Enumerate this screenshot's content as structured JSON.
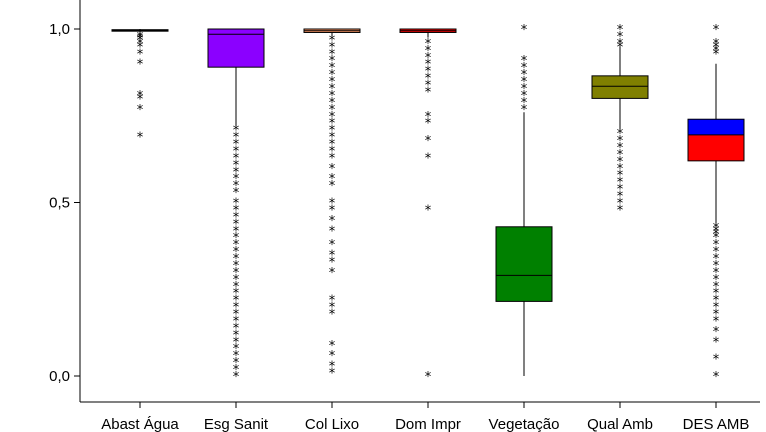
{
  "chart_data": {
    "type": "boxplot",
    "title": "",
    "xlabel": "",
    "ylabel": "",
    "ylim": [
      0,
      1
    ],
    "yticks": [
      {
        "value": 0,
        "label": "0,0"
      },
      {
        "value": 0.5,
        "label": "0,5"
      },
      {
        "value": 1,
        "label": "1,0"
      }
    ],
    "grid": false,
    "series": [
      {
        "category": "Abast Água",
        "color": "#000000",
        "q1": 0.995,
        "median": 0.995,
        "q3": 0.998,
        "whisker_low": 0.99,
        "whisker_high": 1.0,
        "outliers": [
          0.98,
          0.975,
          0.97,
          0.96,
          0.95,
          0.93,
          0.9,
          0.81,
          0.8,
          0.77,
          0.69
        ]
      },
      {
        "category": "Esg Sanit",
        "color": "#8B00FF",
        "q1": 0.89,
        "median": 0.985,
        "q3": 1.0,
        "whisker_low": 0.72,
        "whisker_high": 1.0,
        "outliers": [
          0.71,
          0.69,
          0.67,
          0.65,
          0.63,
          0.61,
          0.59,
          0.57,
          0.55,
          0.53,
          0.5,
          0.48,
          0.46,
          0.44,
          0.42,
          0.4,
          0.38,
          0.36,
          0.34,
          0.32,
          0.3,
          0.28,
          0.26,
          0.24,
          0.22,
          0.2,
          0.18,
          0.16,
          0.14,
          0.12,
          0.1,
          0.08,
          0.06,
          0.04,
          0.02,
          0.0
        ]
      },
      {
        "category": "Col Lixo",
        "color": "#FF9966",
        "q1": 0.99,
        "median": 0.995,
        "q3": 1.0,
        "whisker_low": 0.98,
        "whisker_high": 1.0,
        "outliers": [
          0.97,
          0.95,
          0.93,
          0.91,
          0.89,
          0.87,
          0.85,
          0.83,
          0.81,
          0.79,
          0.77,
          0.75,
          0.73,
          0.71,
          0.69,
          0.67,
          0.65,
          0.63,
          0.6,
          0.57,
          0.55,
          0.5,
          0.48,
          0.45,
          0.42,
          0.38,
          0.35,
          0.33,
          0.3,
          0.22,
          0.2,
          0.18,
          0.09,
          0.06,
          0.03,
          0.01
        ]
      },
      {
        "category": "Dom Impr",
        "color": "#FF0000",
        "q1": 0.99,
        "median": 0.995,
        "q3": 1.0,
        "whisker_low": 0.975,
        "whisker_high": 1.0,
        "outliers": [
          0.96,
          0.94,
          0.92,
          0.9,
          0.88,
          0.86,
          0.84,
          0.82,
          0.75,
          0.73,
          0.68,
          0.63,
          0.48,
          0.0
        ]
      },
      {
        "category": "Vegetação",
        "color": "#008000",
        "q1": 0.215,
        "median": 0.29,
        "q3": 0.43,
        "whisker_low": 0.0,
        "whisker_high": 0.76,
        "outliers": [
          0.77,
          0.79,
          0.81,
          0.83,
          0.85,
          0.87,
          0.89,
          0.91,
          1.0
        ]
      },
      {
        "category": "Qual Amb",
        "color": "#808000",
        "q1": 0.8,
        "median": 0.835,
        "q3": 0.865,
        "whisker_low": 0.71,
        "whisker_high": 0.95,
        "outliers": [
          1.0,
          0.98,
          0.96,
          0.95,
          0.7,
          0.68,
          0.66,
          0.64,
          0.62,
          0.6,
          0.58,
          0.56,
          0.54,
          0.52,
          0.5,
          0.48
        ]
      },
      {
        "category": "DES AMB",
        "color_upper": "#0000FF",
        "color_lower": "#FF0000",
        "q1": 0.62,
        "median": 0.695,
        "q3": 0.74,
        "whisker_low": 0.44,
        "whisker_high": 0.9,
        "outliers": [
          1.0,
          0.96,
          0.95,
          0.94,
          0.93,
          0.43,
          0.42,
          0.41,
          0.4,
          0.38,
          0.36,
          0.34,
          0.32,
          0.3,
          0.28,
          0.26,
          0.24,
          0.22,
          0.2,
          0.18,
          0.16,
          0.13,
          0.1,
          0.05,
          0.0
        ]
      }
    ]
  }
}
